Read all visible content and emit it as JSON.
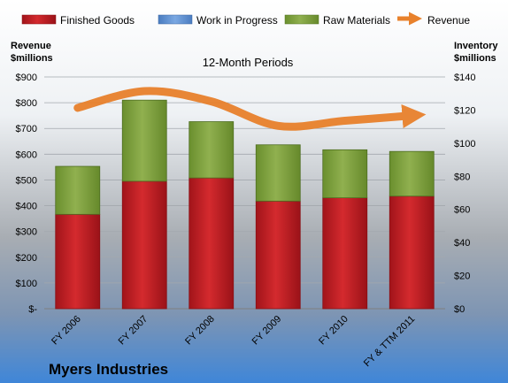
{
  "chart_data": {
    "type": "bar",
    "stacked": true,
    "subtitle": "12-Month Periods",
    "company": "Myers Industries",
    "categories": [
      "FY 2006",
      "FY 2007",
      "FY 2008",
      "FY 2009",
      "FY 2010",
      "FY & TTM 2011"
    ],
    "left_axis": {
      "title_line1": "Revenue",
      "title_line2": "$millions",
      "range": [
        0,
        900
      ],
      "ticks": [
        0,
        100,
        200,
        300,
        400,
        500,
        600,
        700,
        800,
        900
      ],
      "tick_labels": [
        "$-",
        "$100",
        "$200",
        "$300",
        "$400",
        "$500",
        "$600",
        "$700",
        "$800",
        "$900"
      ]
    },
    "right_axis": {
      "title_line1": "Inventory",
      "title_line2": "$millions",
      "range": [
        0,
        140
      ],
      "ticks": [
        0,
        20,
        40,
        60,
        80,
        100,
        120,
        140
      ],
      "tick_labels": [
        "$0",
        "$20",
        "$40",
        "$60",
        "$80",
        "$100",
        "$120",
        "$140"
      ]
    },
    "series": [
      {
        "name": "Finished Goods",
        "axis": "right",
        "color": "#c0171d",
        "values": [
          57,
          77,
          79,
          65,
          67,
          68
        ]
      },
      {
        "name": "Work in Progress",
        "axis": "right",
        "color": "#5b8fd2",
        "values": [
          0,
          0,
          0,
          0,
          0,
          0
        ]
      },
      {
        "name": "Raw Materials",
        "axis": "right",
        "color": "#7da03c",
        "values": [
          29,
          49,
          34,
          34,
          29,
          27
        ]
      },
      {
        "name": "Revenue",
        "axis": "left",
        "color": "#e8812c",
        "type": "line",
        "values": [
          780,
          845,
          805,
          710,
          730,
          750
        ]
      }
    ],
    "grid": true,
    "legend_position": "top"
  }
}
